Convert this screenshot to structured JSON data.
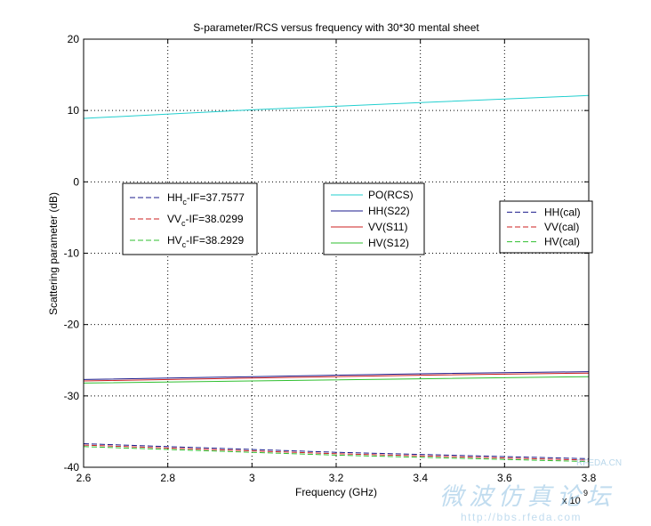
{
  "chart_data": {
    "type": "line",
    "title": "S-parameter/RCS versus frequency with 30*30 mental sheet",
    "xlabel": "Frequency (GHz)",
    "ylabel": "Scattering parameter (dB)",
    "x_multiplier_label": "x 10",
    "x_multiplier_exponent": "9",
    "xlim": [
      2.6,
      3.8
    ],
    "ylim": [
      -40,
      20
    ],
    "xticks": [
      2.6,
      2.8,
      3,
      3.2,
      3.4,
      3.6,
      3.8
    ],
    "xtick_labels": [
      "2.6",
      "2.8",
      "3",
      "3.2",
      "3.4",
      "3.6",
      "3.8"
    ],
    "yticks": [
      -40,
      -30,
      -20,
      -10,
      0,
      10,
      20
    ],
    "ytick_labels": [
      "-40",
      "-30",
      "-20",
      "-10",
      "0",
      "10",
      "20"
    ],
    "grid": true,
    "series": [
      {
        "name": "PO(RCS)",
        "color": "#22cfcf",
        "style": "solid",
        "x": [
          2.6,
          3.0,
          3.4,
          3.8
        ],
        "y": [
          8.9,
          10.1,
          11.1,
          12.1
        ]
      },
      {
        "name": "HH(S22)",
        "color": "#1b1b8c",
        "style": "solid",
        "x": [
          2.6,
          3.0,
          3.4,
          3.8
        ],
        "y": [
          -27.7,
          -27.3,
          -26.9,
          -26.6
        ]
      },
      {
        "name": "VV(S11)",
        "color": "#cc1f1f",
        "style": "solid",
        "x": [
          2.6,
          3.0,
          3.4,
          3.8
        ],
        "y": [
          -27.9,
          -27.5,
          -27.1,
          -26.8
        ]
      },
      {
        "name": "HV(S12)",
        "color": "#2fbf2f",
        "style": "solid",
        "x": [
          2.6,
          3.0,
          3.4,
          3.8
        ],
        "y": [
          -28.2,
          -27.9,
          -27.6,
          -27.3
        ]
      },
      {
        "name": "HH(cal)",
        "color": "#1b1b8c",
        "style": "dashed",
        "x": [
          2.6,
          2.8,
          3.0,
          3.2,
          3.4,
          3.6,
          3.8
        ],
        "y": [
          -36.7,
          -37.1,
          -37.5,
          -37.9,
          -38.2,
          -38.5,
          -38.8
        ]
      },
      {
        "name": "VV(cal)",
        "color": "#cc1f1f",
        "style": "dashed",
        "x": [
          2.6,
          2.8,
          3.0,
          3.2,
          3.4,
          3.6,
          3.8
        ],
        "y": [
          -36.9,
          -37.3,
          -37.7,
          -38.1,
          -38.4,
          -38.7,
          -39.0
        ]
      },
      {
        "name": "HV(cal)",
        "color": "#2fbf2f",
        "style": "dashed",
        "x": [
          2.6,
          2.8,
          3.0,
          3.2,
          3.4,
          3.6,
          3.8
        ],
        "y": [
          -37.1,
          -37.5,
          -37.9,
          -38.3,
          -38.6,
          -38.9,
          -39.2
        ]
      }
    ],
    "legends": [
      {
        "placement": "left",
        "entries": [
          {
            "label": "HH",
            "sub": "c",
            "rest": "-IF=37.7577",
            "color": "#1b1b8c",
            "style": "dashed"
          },
          {
            "label": "VV",
            "sub": "c",
            "rest": "-IF=38.0299",
            "color": "#cc1f1f",
            "style": "dashed"
          },
          {
            "label": "HV",
            "sub": "c",
            "rest": "-IF=38.2929",
            "color": "#2fbf2f",
            "style": "dashed"
          }
        ]
      },
      {
        "placement": "center",
        "entries": [
          {
            "label": "PO(RCS)",
            "sub": "",
            "rest": "",
            "color": "#22cfcf",
            "style": "solid"
          },
          {
            "label": "HH(S22)",
            "sub": "",
            "rest": "",
            "color": "#1b1b8c",
            "style": "solid"
          },
          {
            "label": "VV(S11)",
            "sub": "",
            "rest": "",
            "color": "#cc1f1f",
            "style": "solid"
          },
          {
            "label": "HV(S12)",
            "sub": "",
            "rest": "",
            "color": "#2fbf2f",
            "style": "solid"
          }
        ]
      },
      {
        "placement": "right",
        "entries": [
          {
            "label": "HH(cal)",
            "sub": "",
            "rest": "",
            "color": "#1b1b8c",
            "style": "dashed"
          },
          {
            "label": "VV(cal)",
            "sub": "",
            "rest": "",
            "color": "#cc1f1f",
            "style": "dashed"
          },
          {
            "label": "HV(cal)",
            "sub": "",
            "rest": "",
            "color": "#2fbf2f",
            "style": "dashed"
          }
        ]
      }
    ]
  },
  "watermark": {
    "brand": "RFEDA.CN",
    "chinese": "微波仿真论坛",
    "url": "http://bbs.rfeda.com"
  }
}
